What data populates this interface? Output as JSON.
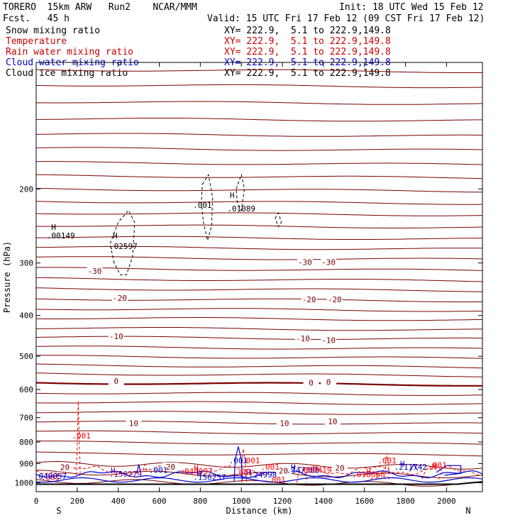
{
  "header": {
    "left1": "TORERO  15km ARW   Run2    NCAR/MMM",
    "left2": "Fcst.   45 h",
    "init": "Init: 18 UTC Wed 15 Feb 12",
    "valid": "Valid: 15 UTC Fri 17 Feb 12 (09 CST Fri 17 Feb 12)"
  },
  "legend": [
    {
      "label": "Snow mixing ratio",
      "xy": "XY= 222.9,  5.1 to 222.9,149.8",
      "label_color": "#000000",
      "xy_color": "#000000"
    },
    {
      "label": "Temperature",
      "xy": "XY= 222.9,  5.1 to 222.9,149.8",
      "label_color": "#cc0000",
      "xy_color": "#cc0000"
    },
    {
      "label": "Rain water mixing ratio",
      "xy": "XY= 222.9,  5.1 to 222.9,149.8",
      "label_color": "#cc0000",
      "xy_color": "#cc0000"
    },
    {
      "label": "Cloud water mixing ratio",
      "xy": "XY= 222.9,  5.1 to 222.9,149.8",
      "label_color": "#0000cc",
      "xy_color": "#0000cc"
    },
    {
      "label": "Cloud ice mixing ratio",
      "xy": "XY= 222.9,  5.1 to 222.9,149.8",
      "label_color": "#000000",
      "xy_color": "#000000"
    }
  ],
  "colors": {
    "temperature": "#7a0000",
    "rain": "#ff0000",
    "cloud_water": "#0000cc",
    "snow": "#000000",
    "cloud_ice": "#000000",
    "frame": "#000000"
  },
  "chart_data": {
    "type": "contour",
    "xlabel": "Distance (km)",
    "ylabel": "Pressure (hPa)",
    "xlim": [
      0,
      2175
    ],
    "ylim": [
      100,
      1050
    ],
    "y_scale": "log",
    "x_ticks": [
      0,
      200,
      400,
      600,
      800,
      1000,
      1200,
      1400,
      1600,
      1800,
      2000
    ],
    "y_ticks": [
      200,
      300,
      400,
      500,
      600,
      700,
      800,
      900,
      1000
    ],
    "x_end_labels": {
      "left": "S",
      "right": "N"
    },
    "temperature_labels": [
      {
        "text": "-30",
        "x": 285,
        "p": 315
      },
      {
        "text": "-30",
        "x": 1310,
        "p": 300
      },
      {
        "text": "-30",
        "x": 1425,
        "p": 300
      },
      {
        "text": "-20",
        "x": 408,
        "p": 365
      },
      {
        "text": "-20",
        "x": 1330,
        "p": 368
      },
      {
        "text": "-20",
        "x": 1455,
        "p": 368
      },
      {
        "text": "-10",
        "x": 390,
        "p": 450
      },
      {
        "text": "-10",
        "x": 1300,
        "p": 455
      },
      {
        "text": "-10",
        "x": 1425,
        "p": 460
      },
      {
        "text": "0",
        "x": 390,
        "p": 575
      },
      {
        "text": "0",
        "x": 1340,
        "p": 580
      },
      {
        "text": "0",
        "x": 1425,
        "p": 578
      },
      {
        "text": "10",
        "x": 475,
        "p": 725
      },
      {
        "text": "10",
        "x": 1210,
        "p": 725
      },
      {
        "text": "10",
        "x": 1445,
        "p": 718
      },
      {
        "text": "20",
        "x": 140,
        "p": 922
      },
      {
        "text": "20",
        "x": 655,
        "p": 920
      },
      {
        "text": "20",
        "x": 1205,
        "p": 940
      },
      {
        "text": "20",
        "x": 1480,
        "p": 925
      }
    ],
    "field_labels": [
      {
        "text": "H",
        "x": 85,
        "p": 250,
        "field": "snow"
      },
      {
        "text": ".00149",
        "x": 120,
        "p": 262,
        "field": "snow"
      },
      {
        "text": "H",
        "x": 385,
        "p": 262,
        "field": "snow"
      },
      {
        "text": ".02597",
        "x": 425,
        "p": 278,
        "field": "snow"
      },
      {
        "text": ".001",
        "x": 810,
        "p": 222,
        "field": "snow"
      },
      {
        "text": "H",
        "x": 955,
        "p": 210,
        "field": "snow"
      },
      {
        "text": ".01089",
        "x": 1000,
        "p": 226,
        "field": "snow"
      },
      {
        "text": ".001",
        "x": 220,
        "p": 785,
        "field": "rain"
      },
      {
        "text": ".001",
        "x": 985,
        "p": 898,
        "field": "cloud_water"
      },
      {
        "text": ".001",
        "x": 1045,
        "p": 898,
        "field": "rain"
      },
      {
        "text": ".001",
        "x": 1710,
        "p": 898,
        "field": "rain"
      },
      {
        "text": ".001",
        "x": 1140,
        "p": 930,
        "field": "rain"
      },
      {
        "text": ".001",
        "x": 1955,
        "p": 922,
        "field": "rain"
      },
      {
        "text": ".001",
        "x": 595,
        "p": 948,
        "field": "cloud_water"
      },
      {
        "text": "H",
        "x": 780,
        "p": 937,
        "field": "rain"
      },
      {
        "text": ".044097",
        "x": 780,
        "p": 952,
        "field": "rain"
      },
      {
        "text": "H",
        "x": 375,
        "p": 950,
        "field": "cloud_water_dark"
      },
      {
        "text": ".156279",
        "x": 435,
        "p": 967,
        "field": "cloud_water_dark"
      },
      {
        "text": "H",
        "x": 795,
        "p": 965,
        "field": "cloud_water"
      },
      {
        "text": ".156237",
        "x": 845,
        "p": 985,
        "field": "cloud_water"
      },
      {
        "text": "H",
        "x": 1035,
        "p": 958,
        "field": "cloud_water"
      },
      {
        "text": ".24998",
        "x": 1105,
        "p": 972,
        "field": "cloud_water"
      },
      {
        "text": "H",
        "x": 1253,
        "p": 933,
        "field": "cloud_water"
      },
      {
        "text": ".147388",
        "x": 1300,
        "p": 948,
        "field": "cloud_water"
      },
      {
        "text": "H",
        "x": 1360,
        "p": 935,
        "field": "rain"
      },
      {
        "text": ".080419",
        "x": 1360,
        "p": 948,
        "field": "rain"
      },
      {
        "text": "H",
        "x": 1620,
        "p": 955,
        "field": "rain"
      },
      {
        "text": ".018666",
        "x": 1620,
        "p": 970,
        "field": "rain"
      },
      {
        "text": "H",
        "x": 1785,
        "p": 915,
        "field": "cloud_water"
      },
      {
        "text": ".211742",
        "x": 1825,
        "p": 930,
        "field": "cloud_water"
      },
      {
        "text": "H",
        "x": 1940,
        "p": 928,
        "field": "rain"
      },
      {
        "text": ".001",
        "x": 1170,
        "p": 998,
        "field": "rain"
      },
      {
        "text": ".001",
        "x": 35,
        "p": 985,
        "field": "rain"
      },
      {
        "text": ".040057",
        "x": 10,
        "p": 980,
        "field": "cloud_water"
      },
      {
        "text": ".001",
        "x": 1010,
        "p": 960,
        "field": "rain"
      }
    ]
  }
}
